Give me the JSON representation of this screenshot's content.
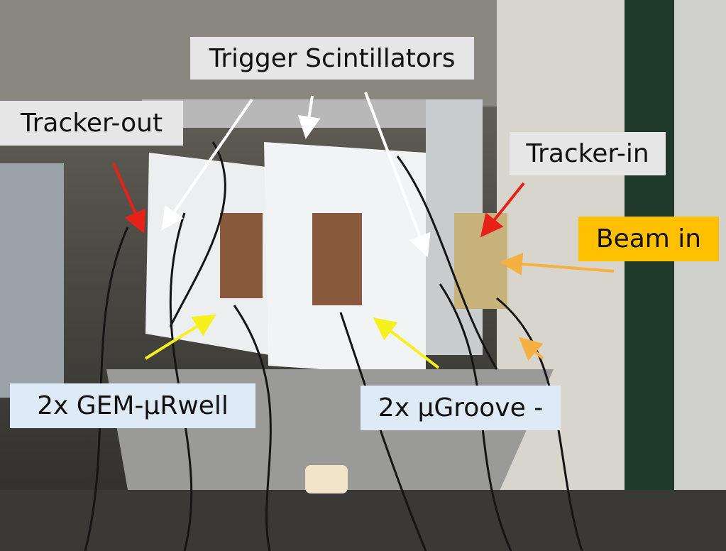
{
  "labels": {
    "trigger_scintillators": "Trigger Scintillators",
    "tracker_out": "Tracker-out",
    "tracker_in": "Tracker-in",
    "beam_in": "Beam in",
    "gem_urwell": "2x GEM-μRwell",
    "ugroove": "2x μGroove -"
  }
}
